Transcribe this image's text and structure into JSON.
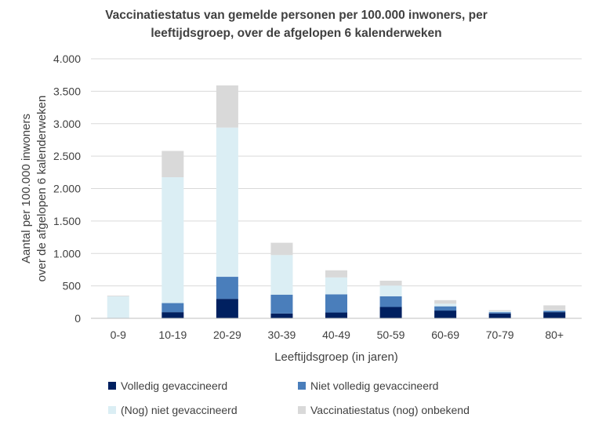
{
  "chart_data": {
    "type": "bar",
    "stacked": true,
    "title_lines": [
      "Vaccinatiestatus van gemelde personen per 100.000 inwoners, per",
      "leeftijdsgroep, over de afgelopen 6 kalenderweken"
    ],
    "xlabel": "Leeftijdsgroep (in jaren)",
    "ylabel_lines": [
      "Aantal per 100.000 inwoners",
      "over de afgelopen 6 kalenderweken"
    ],
    "ylim": [
      0,
      4000
    ],
    "yticks": [
      {
        "value": 0,
        "label": "0"
      },
      {
        "value": 500,
        "label": "500"
      },
      {
        "value": 1000,
        "label": "1.000"
      },
      {
        "value": 1500,
        "label": "1.500"
      },
      {
        "value": 2000,
        "label": "2.000"
      },
      {
        "value": 2500,
        "label": "2.500"
      },
      {
        "value": 3000,
        "label": "3.000"
      },
      {
        "value": 3500,
        "label": "3.500"
      },
      {
        "value": 4000,
        "label": "4.000"
      }
    ],
    "grid": true,
    "legend_position": "bottom",
    "categories": [
      "0-9",
      "10-19",
      "20-29",
      "30-39",
      "40-49",
      "50-59",
      "60-69",
      "70-79",
      "80+"
    ],
    "series": [
      {
        "name": "Volledig gevaccineerd",
        "color": "#002060",
        "values": [
          0,
          95,
          300,
          75,
          90,
          175,
          120,
          75,
          95
        ]
      },
      {
        "name": "Niet volledig gevaccineerd",
        "color": "#4a7ebb",
        "values": [
          0,
          140,
          340,
          290,
          280,
          165,
          65,
          20,
          20
        ]
      },
      {
        "name": "(Nog) niet gevaccineerd",
        "color": "#dbeef4",
        "values": [
          340,
          1940,
          2300,
          610,
          260,
          165,
          40,
          15,
          10
        ]
      },
      {
        "name": "Vaccinatiestatus (nog) onbekend",
        "color": "#d9d9d9",
        "values": [
          10,
          405,
          650,
          190,
          110,
          75,
          55,
          15,
          75
        ]
      }
    ]
  }
}
